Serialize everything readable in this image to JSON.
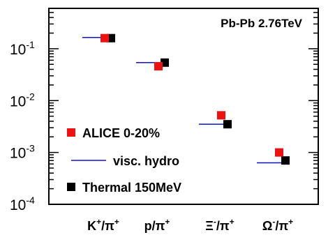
{
  "chart_data": {
    "type": "scatter",
    "title": "Pb-Pb 2.76TeV",
    "y_scale": "log",
    "ylim": [
      0.0001,
      0.6
    ],
    "y_ticks": [
      {
        "value": 0.1,
        "base": "10",
        "exp": "-1"
      },
      {
        "value": 0.01,
        "base": "10",
        "exp": "-2"
      },
      {
        "value": 0.001,
        "base": "10",
        "exp": "-3"
      },
      {
        "value": 0.0001,
        "base": "10",
        "exp": "-4"
      }
    ],
    "categories": [
      {
        "main": "K",
        "sup": "+",
        "slash": "/",
        "den": "π",
        "den_sup": "+"
      },
      {
        "main": "p",
        "sup": "",
        "slash": "/",
        "den": "π",
        "den_sup": "+"
      },
      {
        "main": "Ξ",
        "sup": "-",
        "slash": "/",
        "den": "π",
        "den_sup": "+"
      },
      {
        "main": "Ω",
        "sup": "-",
        "slash": "/",
        "den": "π",
        "den_sup": "+"
      }
    ],
    "series": [
      {
        "name": "ALICE 0-20%",
        "marker": "square",
        "color": "#ee1111",
        "values": [
          0.16,
          0.046,
          0.0052,
          0.001
        ]
      },
      {
        "name": "visc. hydro",
        "marker": "line",
        "color": "#1111cc",
        "values": [
          0.165,
          0.054,
          0.0035,
          0.00063
        ]
      },
      {
        "name": "Thermal 150MeV",
        "marker": "square",
        "color": "#000000",
        "values": [
          0.16,
          0.054,
          0.0035,
          0.0007
        ]
      }
    ],
    "legend_position": "bottom-left",
    "grid": false
  }
}
